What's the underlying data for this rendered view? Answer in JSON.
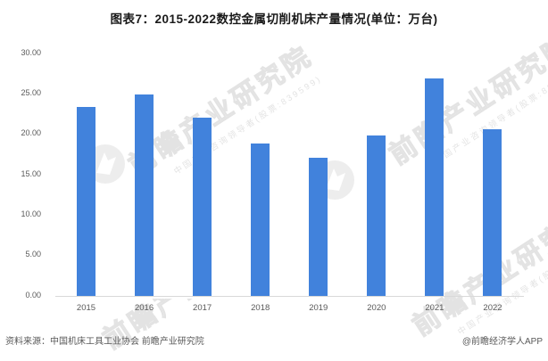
{
  "title": "图表7：2015-2022数控金属切削机床产量情况(单位：万台)",
  "chart_data": {
    "type": "bar",
    "title": "图表7：2015-2022数控金属切削机床产量情况(单位：万台)",
    "categories": [
      "2015",
      "2016",
      "2017",
      "2018",
      "2019",
      "2020",
      "2021",
      "2022"
    ],
    "values": [
      23.4,
      24.9,
      22.1,
      18.9,
      17.1,
      19.8,
      26.9,
      20.6
    ],
    "unit": "万台",
    "xlabel": "",
    "ylabel": "",
    "ylim": [
      0,
      30
    ],
    "ytick_step": 5,
    "ytick_labels": [
      "0.00",
      "5.00",
      "10.00",
      "15.00",
      "20.00",
      "25.00",
      "30.00"
    ],
    "grid": false,
    "legend_position": "none",
    "bar_color": "#4182DC"
  },
  "footer": {
    "source": "资料来源：中国机床工具工业协会 前瞻产业研究院",
    "credit": "@前瞻经济学人APP"
  },
  "watermark": {
    "brand": "前瞻产业研究院",
    "tagline": "中国产业咨询领导者(股票:839599)"
  },
  "colors": {
    "background": "#FFFFFF",
    "bar": "#4182DC",
    "axis_line": "#D9D9D9",
    "tick_label": "#595959",
    "title_text": "#1A1A1A",
    "footer_text": "#595959",
    "watermark": "#CDCDCD"
  }
}
